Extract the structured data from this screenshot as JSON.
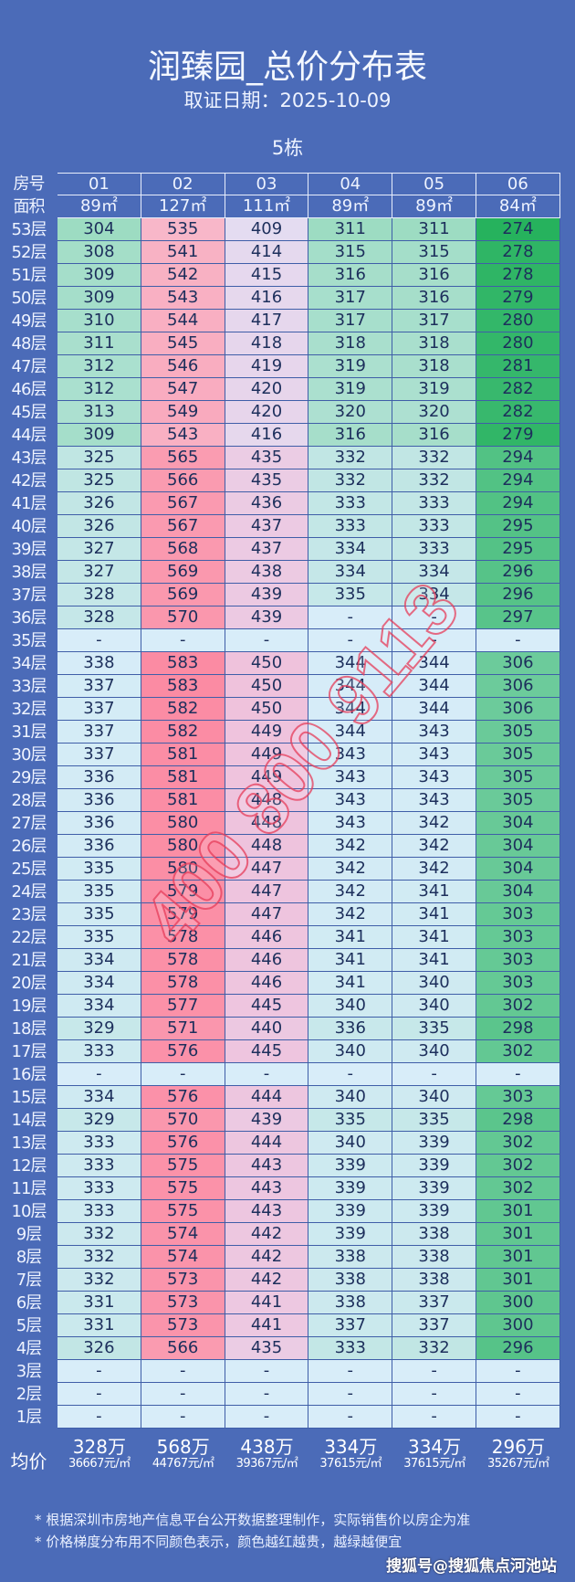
{
  "title": "润臻园_总价分布表",
  "date_line": "取证日期：2025-10-09",
  "building": "5栋",
  "header": {
    "room_label": "房号",
    "area_label": "面积",
    "rooms": [
      "01",
      "02",
      "03",
      "04",
      "05",
      "06"
    ],
    "areas": [
      "89㎡",
      "127㎡",
      "111㎡",
      "89㎡",
      "89㎡",
      "84㎡"
    ]
  },
  "color_scale": {
    "note": "",
    "columns": [
      {
        "low": "#9ddcc2",
        "high": "#d6ecf8"
      },
      {
        "low": "#f8b7c9",
        "high": "#fb8ba3"
      },
      {
        "low": "#e4dcf1",
        "high": "#efc2dc"
      },
      {
        "low": "#9ddcc2",
        "high": "#d6ecf8"
      },
      {
        "low": "#9ddcc2",
        "high": "#d6ecf8"
      },
      {
        "low": "#26b25d",
        "high": "#6ccb9b"
      }
    ],
    "empty": "#d8edf9"
  },
  "rows": [
    {
      "floor": "53层",
      "values": [
        "304",
        "535",
        "409",
        "311",
        "311",
        "274"
      ]
    },
    {
      "floor": "52层",
      "values": [
        "308",
        "541",
        "414",
        "315",
        "315",
        "278"
      ]
    },
    {
      "floor": "51层",
      "values": [
        "309",
        "542",
        "415",
        "316",
        "316",
        "278"
      ]
    },
    {
      "floor": "50层",
      "values": [
        "309",
        "543",
        "416",
        "317",
        "316",
        "279"
      ]
    },
    {
      "floor": "49层",
      "values": [
        "310",
        "544",
        "417",
        "317",
        "317",
        "280"
      ]
    },
    {
      "floor": "48层",
      "values": [
        "311",
        "545",
        "418",
        "318",
        "318",
        "280"
      ]
    },
    {
      "floor": "47层",
      "values": [
        "312",
        "546",
        "419",
        "319",
        "318",
        "281"
      ]
    },
    {
      "floor": "46层",
      "values": [
        "312",
        "547",
        "420",
        "319",
        "319",
        "282"
      ]
    },
    {
      "floor": "45层",
      "values": [
        "313",
        "549",
        "420",
        "320",
        "320",
        "282"
      ]
    },
    {
      "floor": "44层",
      "values": [
        "309",
        "543",
        "416",
        "316",
        "316",
        "279"
      ]
    },
    {
      "floor": "43层",
      "values": [
        "325",
        "565",
        "435",
        "332",
        "332",
        "294"
      ]
    },
    {
      "floor": "42层",
      "values": [
        "325",
        "566",
        "435",
        "332",
        "332",
        "294"
      ]
    },
    {
      "floor": "41层",
      "values": [
        "326",
        "567",
        "436",
        "333",
        "333",
        "294"
      ]
    },
    {
      "floor": "40层",
      "values": [
        "326",
        "567",
        "437",
        "333",
        "333",
        "295"
      ]
    },
    {
      "floor": "39层",
      "values": [
        "327",
        "568",
        "437",
        "334",
        "333",
        "295"
      ]
    },
    {
      "floor": "38层",
      "values": [
        "327",
        "569",
        "438",
        "334",
        "334",
        "296"
      ]
    },
    {
      "floor": "37层",
      "values": [
        "328",
        "569",
        "439",
        "335",
        "334",
        "296"
      ]
    },
    {
      "floor": "36层",
      "values": [
        "328",
        "570",
        "439",
        "-",
        "-",
        "297"
      ]
    },
    {
      "floor": "35层",
      "values": [
        "-",
        "-",
        "-",
        "-",
        "-",
        "-"
      ]
    },
    {
      "floor": "34层",
      "values": [
        "338",
        "583",
        "450",
        "344",
        "344",
        "306"
      ]
    },
    {
      "floor": "33层",
      "values": [
        "337",
        "583",
        "450",
        "344",
        "344",
        "306"
      ]
    },
    {
      "floor": "32层",
      "values": [
        "337",
        "582",
        "450",
        "344",
        "344",
        "306"
      ]
    },
    {
      "floor": "31层",
      "values": [
        "337",
        "582",
        "449",
        "344",
        "343",
        "305"
      ]
    },
    {
      "floor": "30层",
      "values": [
        "337",
        "581",
        "449",
        "343",
        "343",
        "305"
      ]
    },
    {
      "floor": "29层",
      "values": [
        "336",
        "581",
        "449",
        "343",
        "343",
        "305"
      ]
    },
    {
      "floor": "28层",
      "values": [
        "336",
        "581",
        "448",
        "343",
        "343",
        "305"
      ]
    },
    {
      "floor": "27层",
      "values": [
        "336",
        "580",
        "448",
        "343",
        "342",
        "304"
      ]
    },
    {
      "floor": "26层",
      "values": [
        "336",
        "580",
        "448",
        "342",
        "342",
        "304"
      ]
    },
    {
      "floor": "25层",
      "values": [
        "335",
        "580",
        "447",
        "342",
        "342",
        "304"
      ]
    },
    {
      "floor": "24层",
      "values": [
        "335",
        "579",
        "447",
        "342",
        "341",
        "304"
      ]
    },
    {
      "floor": "23层",
      "values": [
        "335",
        "579",
        "447",
        "342",
        "341",
        "303"
      ]
    },
    {
      "floor": "22层",
      "values": [
        "335",
        "578",
        "446",
        "341",
        "341",
        "303"
      ]
    },
    {
      "floor": "21层",
      "values": [
        "334",
        "578",
        "446",
        "341",
        "341",
        "303"
      ]
    },
    {
      "floor": "20层",
      "values": [
        "334",
        "578",
        "446",
        "341",
        "340",
        "303"
      ]
    },
    {
      "floor": "19层",
      "values": [
        "334",
        "577",
        "445",
        "340",
        "340",
        "302"
      ]
    },
    {
      "floor": "18层",
      "values": [
        "329",
        "571",
        "440",
        "336",
        "335",
        "298"
      ]
    },
    {
      "floor": "17层",
      "values": [
        "333",
        "576",
        "445",
        "340",
        "340",
        "302"
      ]
    },
    {
      "floor": "16层",
      "values": [
        "-",
        "-",
        "-",
        "-",
        "-",
        "-"
      ]
    },
    {
      "floor": "15层",
      "values": [
        "334",
        "576",
        "444",
        "340",
        "340",
        "303"
      ]
    },
    {
      "floor": "14层",
      "values": [
        "329",
        "570",
        "439",
        "335",
        "335",
        "298"
      ]
    },
    {
      "floor": "13层",
      "values": [
        "333",
        "576",
        "444",
        "340",
        "339",
        "302"
      ]
    },
    {
      "floor": "12层",
      "values": [
        "333",
        "575",
        "443",
        "339",
        "339",
        "302"
      ]
    },
    {
      "floor": "11层",
      "values": [
        "333",
        "575",
        "443",
        "339",
        "339",
        "302"
      ]
    },
    {
      "floor": "10层",
      "values": [
        "333",
        "575",
        "443",
        "339",
        "339",
        "301"
      ]
    },
    {
      "floor": "9层",
      "values": [
        "332",
        "574",
        "442",
        "339",
        "338",
        "301"
      ]
    },
    {
      "floor": "8层",
      "values": [
        "332",
        "574",
        "442",
        "338",
        "338",
        "301"
      ]
    },
    {
      "floor": "7层",
      "values": [
        "332",
        "573",
        "442",
        "338",
        "338",
        "301"
      ]
    },
    {
      "floor": "6层",
      "values": [
        "331",
        "573",
        "441",
        "338",
        "337",
        "300"
      ]
    },
    {
      "floor": "5层",
      "values": [
        "331",
        "573",
        "441",
        "337",
        "337",
        "300"
      ]
    },
    {
      "floor": "4层",
      "values": [
        "326",
        "566",
        "435",
        "333",
        "332",
        "296"
      ]
    },
    {
      "floor": "3层",
      "values": [
        "-",
        "-",
        "-",
        "-",
        "-",
        "-"
      ]
    },
    {
      "floor": "2层",
      "values": [
        "-",
        "-",
        "-",
        "-",
        "-",
        "-"
      ]
    },
    {
      "floor": "1层",
      "values": [
        "-",
        "-",
        "-",
        "-",
        "-",
        "-"
      ]
    }
  ],
  "average": {
    "label": "均价",
    "totals": [
      "328万",
      "568万",
      "438万",
      "334万",
      "334万",
      "296万"
    ],
    "unit_prices": [
      "36667元/㎡",
      "44767元/㎡",
      "39367元/㎡",
      "37615元/㎡",
      "37615元/㎡",
      "35267元/㎡"
    ]
  },
  "notes": [
    "* 根据深圳市房地产信息平台公开数据整理制作，实际销售价以房企为准",
    "* 价格梯度分布用不同颜色表示，颜色越红越贵，越绿越便宜"
  ],
  "watermark_phone": "400 800 9113",
  "source_watermark": "搜狐号@搜狐焦点河池站"
}
